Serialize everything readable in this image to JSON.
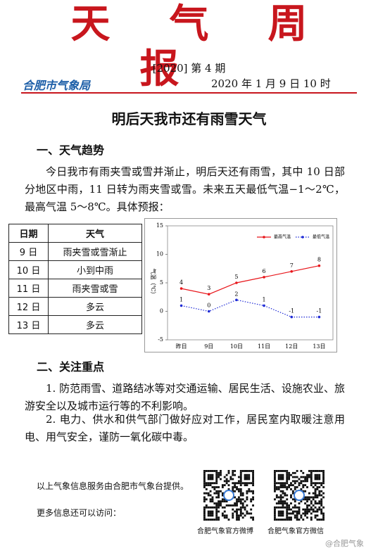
{
  "header": {
    "title": "天气周报",
    "issue": "[2020] 第 4 期",
    "org": "合肥市气象局",
    "date": "2020 年 1 月 9 日 10 时"
  },
  "headline": "明后天我市还有雨雪天气",
  "section1": {
    "heading": "一、天气趋势",
    "text": "今日我市有雨夹雪或雪并渐止，明后天还有雨雪，其中 10 日部分地区中雨，11 日转为雨夹雪或雪。未来五天最低气温−1～2℃，最高气温 5～8℃。具体预报："
  },
  "table": {
    "headers": [
      "日期",
      "天气"
    ],
    "rows": [
      [
        "9 日",
        "雨夹雪或雪渐止"
      ],
      [
        "10 日",
        "小到中雨"
      ],
      [
        "11 日",
        "雨夹雪或雪"
      ],
      [
        "12 日",
        "多云"
      ],
      [
        "13 日",
        "多云"
      ]
    ]
  },
  "chart_data": {
    "type": "line",
    "y_label": "气温（℃）",
    "categories": [
      "昨日",
      "9日",
      "10日",
      "11日",
      "12日",
      "13日"
    ],
    "series": [
      {
        "name": "最高气温",
        "color": "#e8161b",
        "values": [
          4,
          3,
          5,
          6,
          7,
          8
        ]
      },
      {
        "name": "最低气温",
        "color": "#1f2bd6",
        "values": [
          1,
          0,
          2,
          1,
          -1,
          -1
        ]
      }
    ],
    "ylim": [
      -5,
      15
    ],
    "yticks": [
      -5,
      0,
      5,
      10,
      15
    ]
  },
  "section2": {
    "heading": "二、关注重点",
    "items": [
      "1. 防范雨雪、道路结冰等对交通运输、居民生活、设施农业、旅游安全以及城市运行等的不利影响。",
      "2. 电力、供水和供气部门做好应对工作，居民室内取暖注意用电、用气安全，谨防一氧化碳中毒。"
    ]
  },
  "footer": {
    "provider": "以上气象信息服务由合肥市气象台提供。",
    "more": "更多信息还可以访问：",
    "qr_captions": [
      "合肥气象官方微博",
      "合肥气象官方微信"
    ],
    "watermark": "@合肥气象"
  }
}
